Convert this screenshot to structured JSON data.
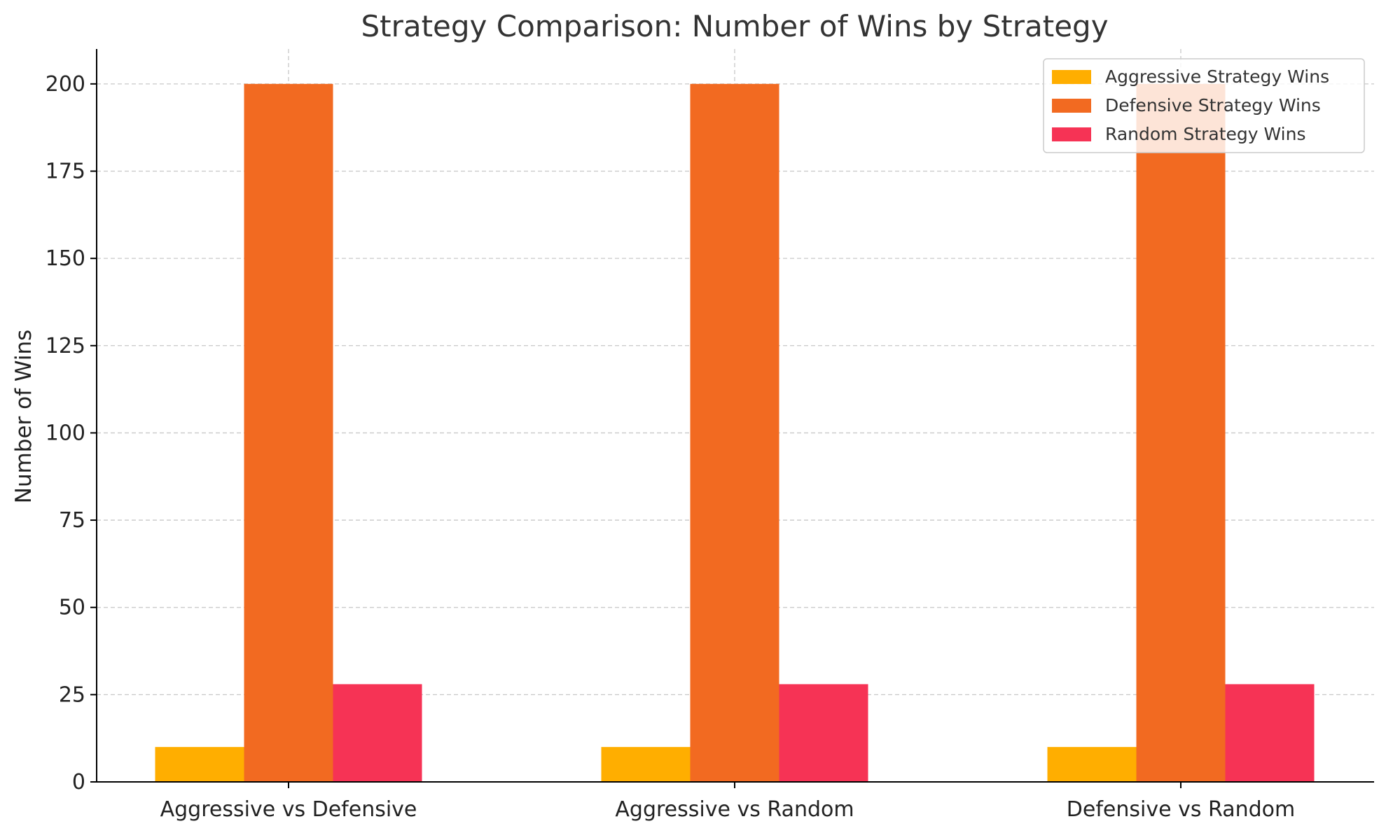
{
  "chart_data": {
    "type": "bar",
    "title": "Strategy Comparison: Number of Wins by Strategy",
    "xlabel": "",
    "ylabel": "Number of Wins",
    "categories": [
      "Aggressive vs Defensive",
      "Aggressive vs Random",
      "Defensive vs Random"
    ],
    "series": [
      {
        "name": "Aggressive Strategy Wins",
        "color": "#FFAE00",
        "values": [
          10,
          10,
          10
        ]
      },
      {
        "name": "Defensive Strategy Wins",
        "color": "#F26A21",
        "values": [
          200,
          200,
          200
        ]
      },
      {
        "name": "Random Strategy Wins",
        "color": "#F63355",
        "values": [
          28,
          28,
          28
        ]
      }
    ],
    "ylim": [
      0,
      210
    ],
    "yticks": [
      0,
      25,
      50,
      75,
      100,
      125,
      150,
      175,
      200
    ],
    "grid": true,
    "legend_position": "top-right"
  }
}
